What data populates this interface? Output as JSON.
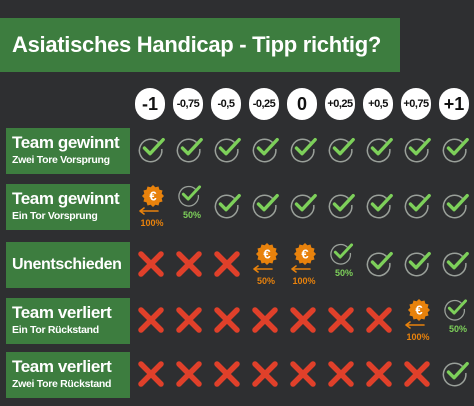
{
  "title": "Asiatisches Handicap - Tipp richtig?",
  "handicaps": [
    "-1",
    "-0,75",
    "-0,5",
    "-0,25",
    "0",
    "+0,25",
    "+0,5",
    "+0,75",
    "+1"
  ],
  "rows": [
    {
      "label": "Team gewinnt",
      "sub": "Zwei Tore Vorsprung",
      "cells": [
        {
          "icon": "check"
        },
        {
          "icon": "check"
        },
        {
          "icon": "check"
        },
        {
          "icon": "check"
        },
        {
          "icon": "check"
        },
        {
          "icon": "check"
        },
        {
          "icon": "check"
        },
        {
          "icon": "check"
        },
        {
          "icon": "check"
        }
      ]
    },
    {
      "label": "Team gewinnt",
      "sub": "Ein Tor Vorsprung",
      "cells": [
        {
          "icon": "euro",
          "pct": "100%"
        },
        {
          "icon": "check-small",
          "pct": "50%"
        },
        {
          "icon": "check"
        },
        {
          "icon": "check"
        },
        {
          "icon": "check"
        },
        {
          "icon": "check"
        },
        {
          "icon": "check"
        },
        {
          "icon": "check"
        },
        {
          "icon": "check"
        }
      ]
    },
    {
      "label": "Unentschieden",
      "sub": "",
      "cells": [
        {
          "icon": "cross"
        },
        {
          "icon": "cross"
        },
        {
          "icon": "cross"
        },
        {
          "icon": "euro",
          "pct": "50%"
        },
        {
          "icon": "euro",
          "pct": "100%"
        },
        {
          "icon": "check-small",
          "pct": "50%"
        },
        {
          "icon": "check"
        },
        {
          "icon": "check"
        },
        {
          "icon": "check"
        }
      ]
    },
    {
      "label": "Team verliert",
      "sub": "Ein Tor Rückstand",
      "cells": [
        {
          "icon": "cross"
        },
        {
          "icon": "cross"
        },
        {
          "icon": "cross"
        },
        {
          "icon": "cross"
        },
        {
          "icon": "cross"
        },
        {
          "icon": "cross"
        },
        {
          "icon": "cross"
        },
        {
          "icon": "euro",
          "pct": "100%"
        },
        {
          "icon": "check-small",
          "pct": "50%"
        }
      ]
    },
    {
      "label": "Team verliert",
      "sub": "Zwei Tore Rückstand",
      "cells": [
        {
          "icon": "cross"
        },
        {
          "icon": "cross"
        },
        {
          "icon": "cross"
        },
        {
          "icon": "cross"
        },
        {
          "icon": "cross"
        },
        {
          "icon": "cross"
        },
        {
          "icon": "cross"
        },
        {
          "icon": "cross"
        },
        {
          "icon": "check"
        }
      ]
    }
  ],
  "colors": {
    "green": "#3d7d3f",
    "check": "#7dd05a",
    "cross": "#e0402a",
    "euro": "#e8820c"
  }
}
